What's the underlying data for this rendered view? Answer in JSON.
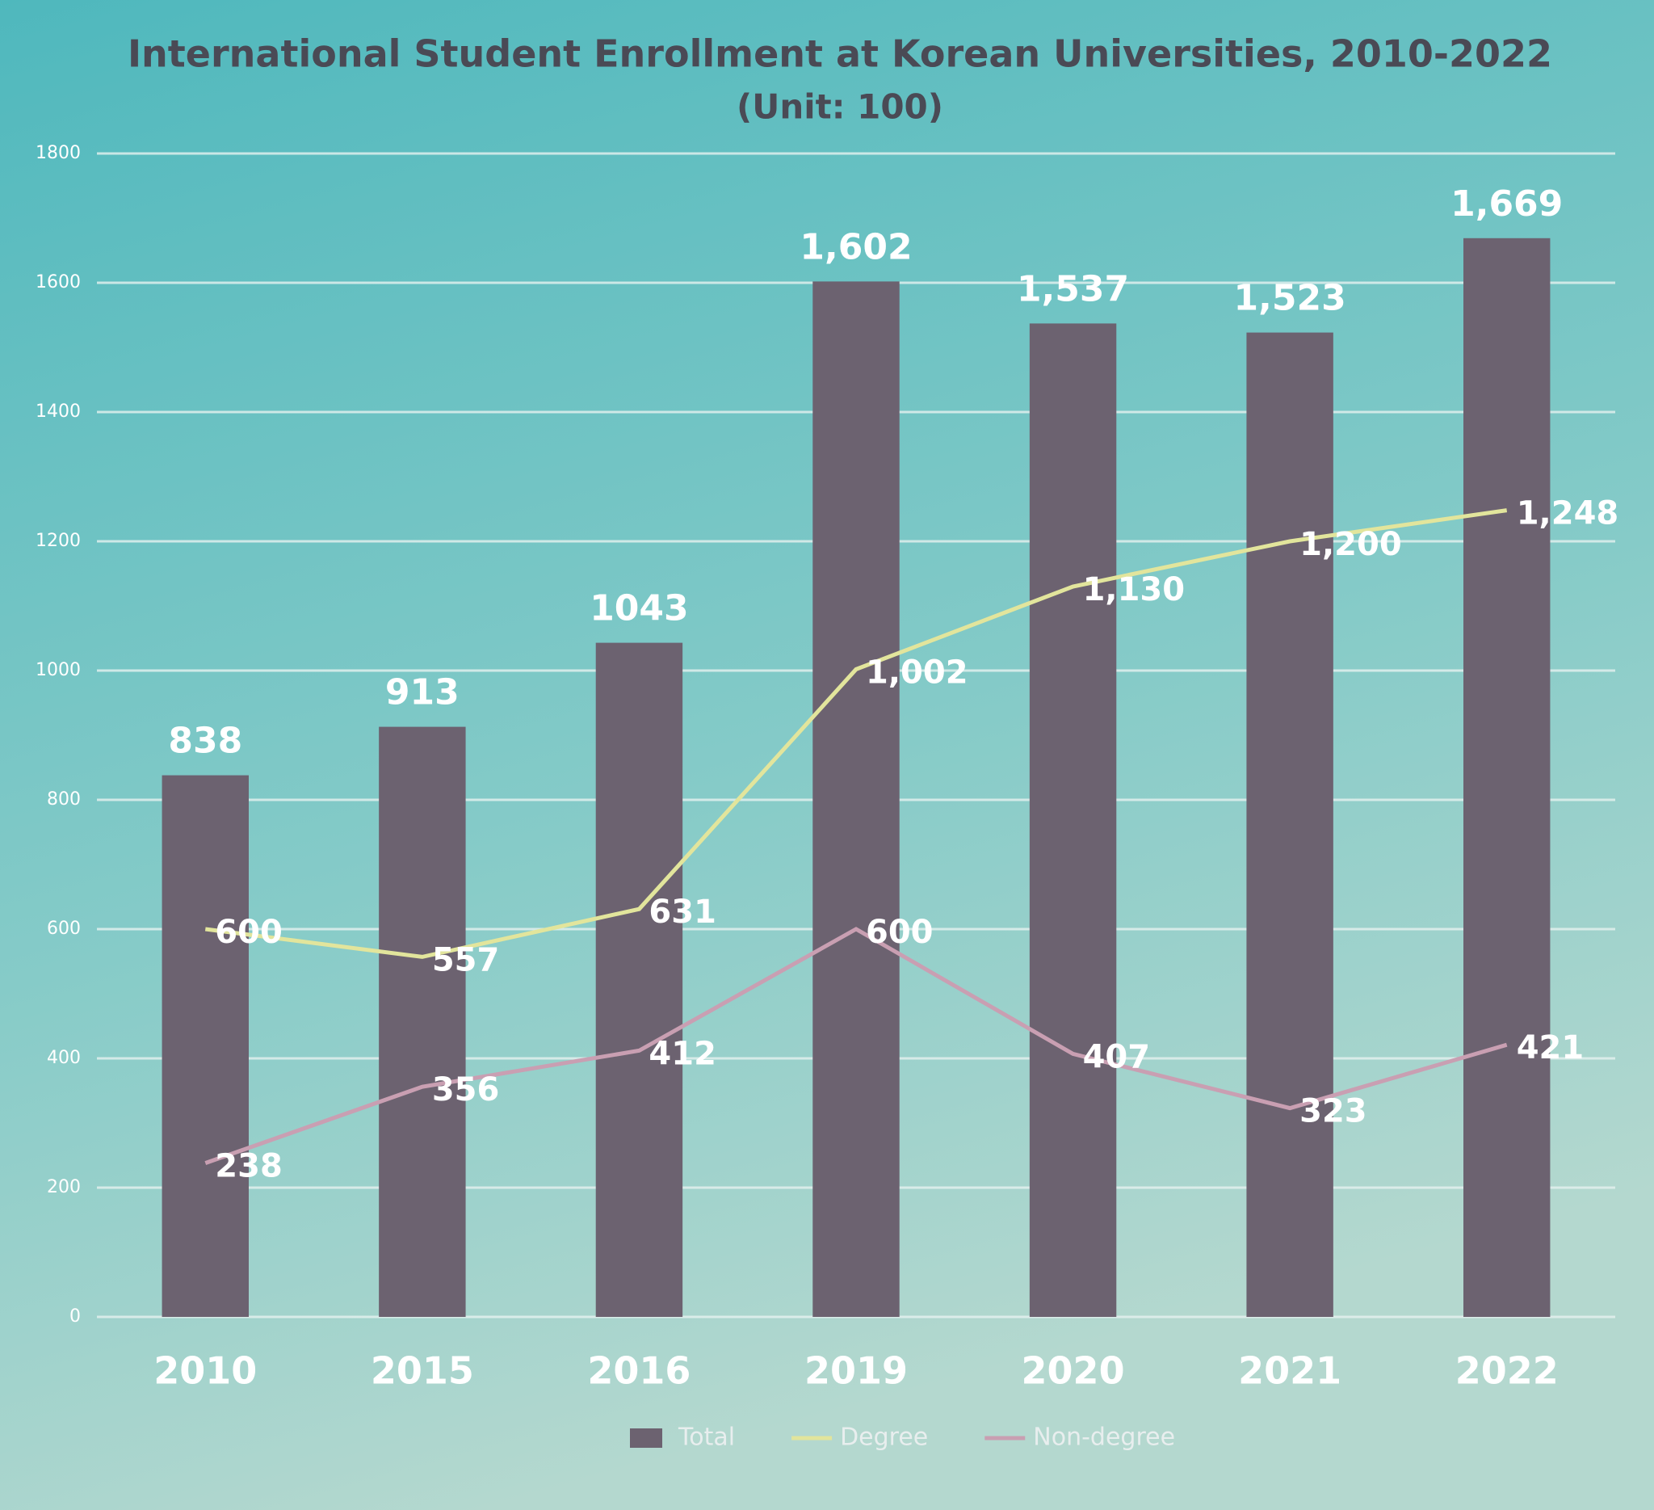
{
  "chart_data": {
    "type": "bar",
    "title": "International Student Enrollment at Korean Universities, 2010-2022",
    "subtitle": "(Unit: 100)",
    "categories": [
      "2010",
      "2015",
      "2016",
      "2019",
      "2020",
      "2021",
      "2022"
    ],
    "series": [
      {
        "name": "Total",
        "type": "bar",
        "color": "#6c6270",
        "values": [
          838,
          913,
          1043,
          1602,
          1537,
          1523,
          1669
        ],
        "value_labels": [
          "838",
          "913",
          "1043",
          "1,602",
          "1,537",
          "1,523",
          "1,669"
        ]
      },
      {
        "name": "Degree",
        "type": "line",
        "color": "#e2e59c",
        "values": [
          600,
          557,
          631,
          1002,
          1130,
          1200,
          1248
        ],
        "value_labels": [
          "600",
          "557",
          "631",
          "1,002",
          "1,130",
          "1,200",
          "1,248"
        ]
      },
      {
        "name": "Non-degree",
        "type": "line",
        "color": "#c99fb2",
        "values": [
          238,
          356,
          412,
          600,
          407,
          323,
          421
        ],
        "value_labels": [
          "238",
          "356",
          "412",
          "600",
          "407",
          "323",
          "421"
        ]
      }
    ],
    "ylim": [
      0,
      1800
    ],
    "yticks": [
      0,
      200,
      400,
      600,
      800,
      1000,
      1200,
      1400,
      1600,
      1800
    ],
    "grid": true
  }
}
